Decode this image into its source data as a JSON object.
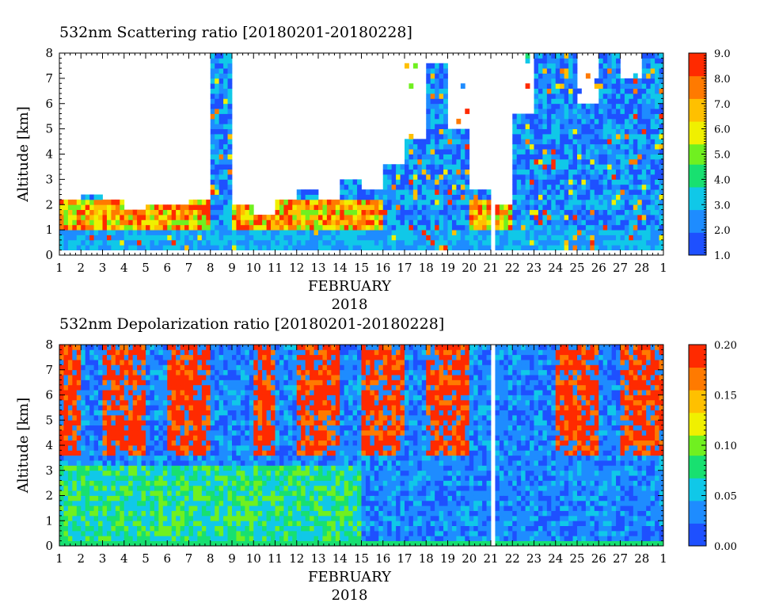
{
  "chart_data": [
    {
      "type": "heatmap",
      "title": "532nm Scattering ratio [20180201-20180228]",
      "ylabel": "Altitude [km]",
      "xlabel": "FEBRUARY",
      "xlabel2": "2018",
      "x_ticks": [
        "1",
        "2",
        "3",
        "4",
        "5",
        "6",
        "7",
        "8",
        "9",
        "10",
        "11",
        "12",
        "13",
        "14",
        "15",
        "16",
        "17",
        "18",
        "19",
        "20",
        "21",
        "22",
        "23",
        "24",
        "25",
        "26",
        "27",
        "28",
        "1"
      ],
      "y_ticks": [
        "0",
        "1",
        "2",
        "3",
        "4",
        "5",
        "6",
        "7",
        "8"
      ],
      "ylim": [
        0,
        8
      ],
      "colorbar_ticks": [
        "1.0",
        "2.0",
        "3.0",
        "4.0",
        "5.0",
        "6.0",
        "7.0",
        "8.0",
        "9.0"
      ],
      "colorbar_range": [
        1.0,
        9.0
      ],
      "colorscale": [
        "#1e50ff",
        "#1e8cff",
        "#10c8e8",
        "#18e070",
        "#70f020",
        "#f0f000",
        "#ffc000",
        "#ff7a00",
        "#ff2a00"
      ],
      "cloud_top_km_by_day": [
        2.2,
        2.4,
        2.1,
        1.8,
        2.0,
        2.0,
        2.2,
        8.0,
        2.0,
        1.6,
        2.2,
        2.5,
        2.2,
        3.0,
        2.6,
        3.5,
        4.5,
        7.5,
        5.0,
        2.5,
        2.0,
        5.5,
        8.0,
        8.0,
        6.0,
        8.0,
        7.0,
        8.0
      ]
    },
    {
      "type": "heatmap",
      "title": "532nm Depolarization ratio [20180201-20180228]",
      "ylabel": "Altitude [km]",
      "xlabel": "FEBRUARY",
      "xlabel2": "2018",
      "x_ticks": [
        "1",
        "2",
        "3",
        "4",
        "5",
        "6",
        "7",
        "8",
        "9",
        "10",
        "11",
        "12",
        "13",
        "14",
        "15",
        "16",
        "17",
        "18",
        "19",
        "20",
        "21",
        "22",
        "23",
        "24",
        "25",
        "26",
        "27",
        "28",
        "1"
      ],
      "y_ticks": [
        "0",
        "1",
        "2",
        "3",
        "4",
        "5",
        "6",
        "7",
        "8"
      ],
      "ylim": [
        0,
        8
      ],
      "colorbar_ticks": [
        "0.00",
        "0.05",
        "0.10",
        "0.15",
        "0.20"
      ],
      "colorbar_range": [
        0.0,
        0.2
      ],
      "colorscale": [
        "#1e50ff",
        "#1e8cff",
        "#10c8e8",
        "#18e070",
        "#70f020",
        "#f0f000",
        "#ffc000",
        "#ff7a00",
        "#ff2a00"
      ],
      "high_depol_days": [
        1,
        3,
        4,
        6,
        7,
        10,
        12,
        13,
        15,
        16,
        18,
        19,
        24,
        25,
        27,
        28
      ]
    }
  ]
}
